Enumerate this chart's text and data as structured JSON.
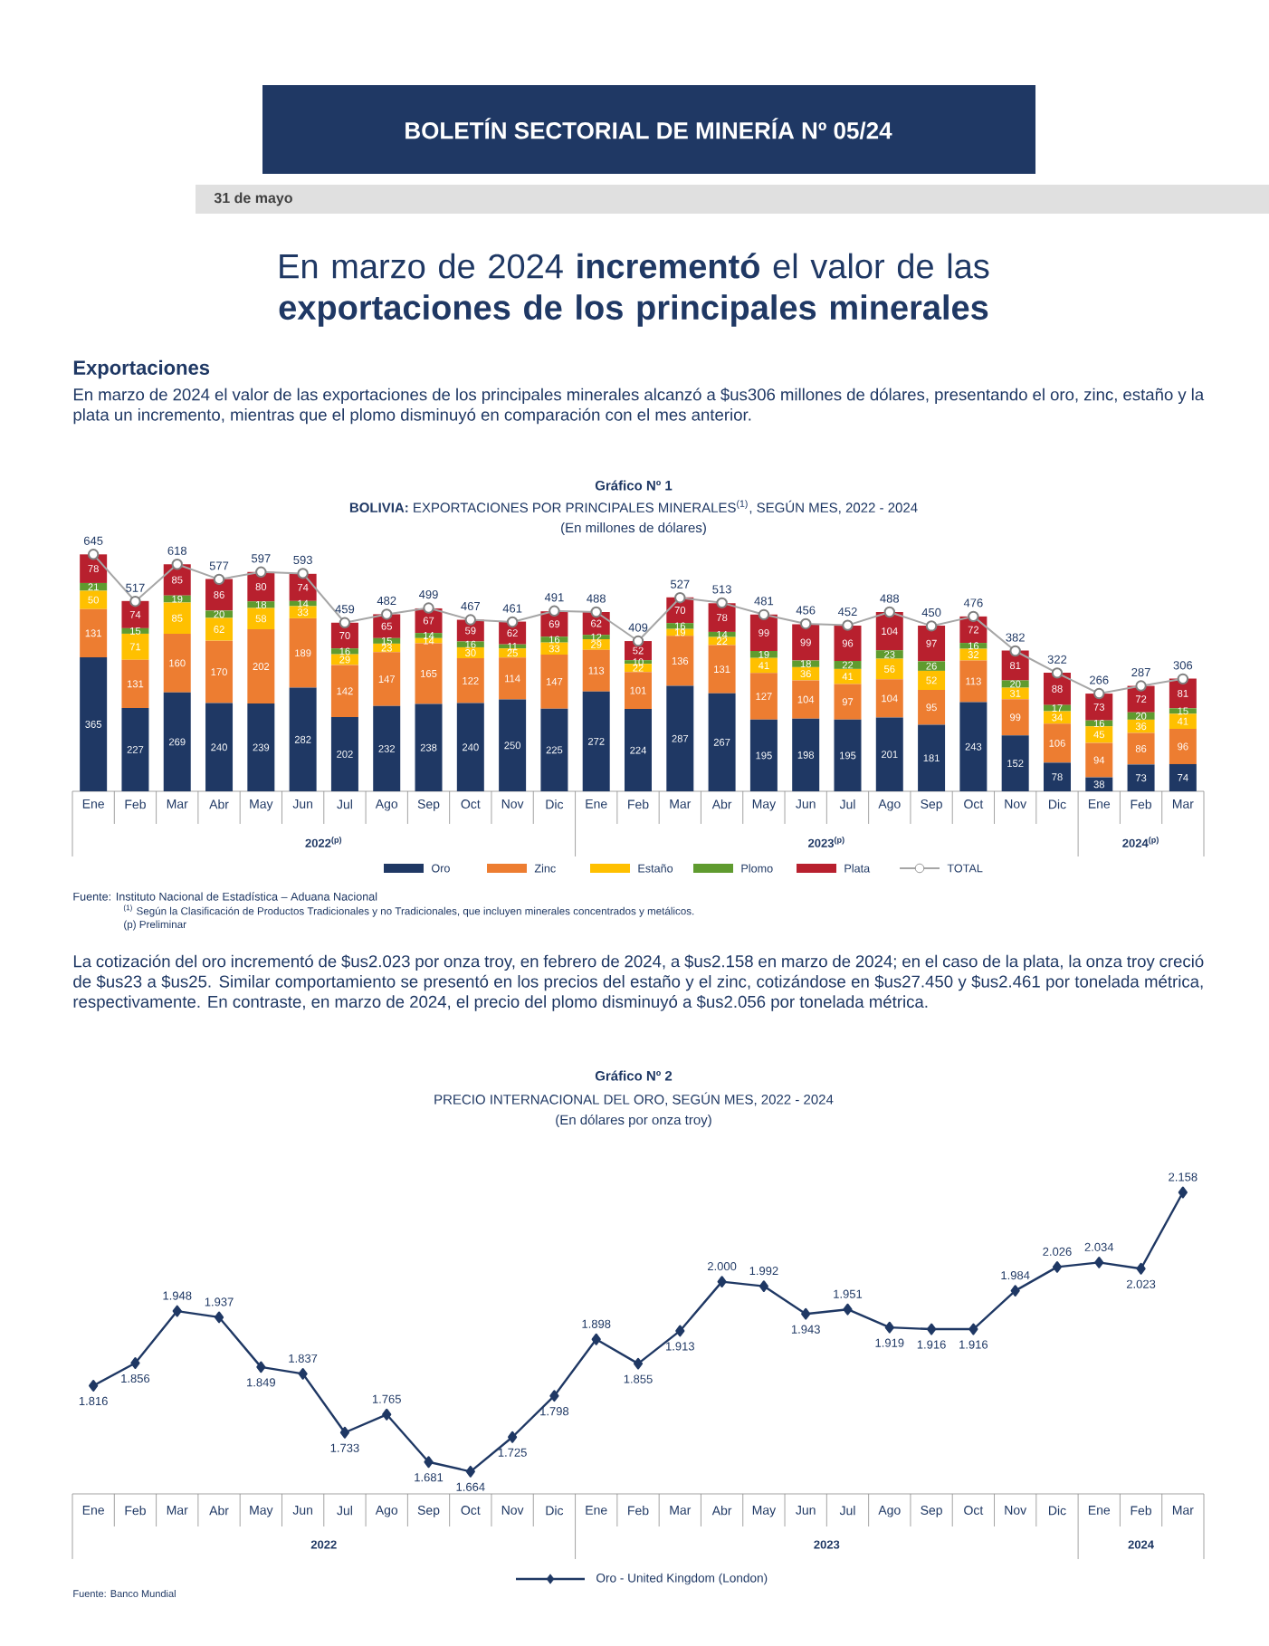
{
  "chart_data": [
    {
      "type": "bar",
      "stacked": true,
      "data_labels": true,
      "legend": "bottom",
      "title": "Gráfico Nº 1",
      "subtitle": "**BOLIVIA:** EXPORTACIONES POR PRINCIPALES MINERALES$^{(1)}$, SEGÚN MES, 2022 - 2024",
      "categories": [
        "Ene",
        "Feb",
        "Mar",
        "Abr",
        "May",
        "Jun",
        "Jul",
        "Ago",
        "Sep",
        "Oct",
        "Nov",
        "Dic",
        "Ene",
        "Feb",
        "Mar",
        "Abr",
        "May",
        "Jun",
        "Jul",
        "Ago",
        "Sep",
        "Oct",
        "Nov",
        "Dic",
        "Ene",
        "Feb",
        "Mar"
      ],
      "series": [
        {
          "name": "Oro",
          "color": "#1f3864",
          "values": [
            365,
            227,
            269,
            240,
            239,
            282,
            202,
            232,
            238,
            240,
            250,
            225,
            272,
            224,
            287,
            267,
            195,
            198,
            195,
            201,
            181,
            243,
            152,
            78,
            38,
            73,
            74
          ]
        },
        {
          "name": "Zinc",
          "color": "#ed7d31",
          "values": [
            131,
            131,
            160,
            170,
            202,
            189,
            142,
            147,
            165,
            122,
            114,
            147,
            113,
            101,
            136,
            131,
            127,
            104,
            97,
            104,
            95,
            113,
            99,
            106,
            94,
            86,
            96
          ]
        },
        {
          "name": "Estaño",
          "color": "#ffc000",
          "values": [
            50,
            71,
            85,
            62,
            58,
            33,
            29,
            23,
            14,
            30,
            25,
            33,
            29,
            22,
            19,
            22,
            41,
            36,
            41,
            56,
            52,
            32,
            31,
            34,
            45,
            36,
            41
          ]
        },
        {
          "name": "Plomo",
          "color": "#5f9b2f",
          "values": [
            21,
            15,
            19,
            20,
            18,
            14,
            16,
            15,
            14,
            16,
            11,
            16,
            12,
            10,
            16,
            14,
            19,
            18,
            22,
            23,
            26,
            16,
            20,
            17,
            16,
            20,
            15
          ]
        },
        {
          "name": "Plata",
          "color": "#b8202e",
          "values": [
            78,
            74,
            85,
            86,
            80,
            74,
            70,
            65,
            67,
            59,
            62,
            69,
            62,
            52,
            70,
            78,
            99,
            99,
            96,
            104,
            97,
            72,
            81,
            88,
            73,
            72,
            81
          ]
        },
        {
          "name": "TOTAL",
          "type": "line",
          "marker": "circle",
          "color": "#a6a6a6",
          "values": [
            645,
            517,
            618,
            577,
            597,
            593,
            459,
            482,
            499,
            467,
            461,
            491,
            488,
            409,
            527,
            513,
            481,
            456,
            452,
            488,
            450,
            476,
            382,
            322,
            266,
            287,
            306
          ]
        }
      ],
      "annotations": [
        "BOLETÍN SECTORIAL DE MINERÍA Nº 05/24",
        "31 de mayo",
        "En marzo de 2024 **incrementó** el valor de las **exportaciones de los principales minerales**",
        "Exportaciones",
        "En marzo de 2024 el valor de las exportaciones de los principales minerales alcanzó a $us306 millones de dólares, presentando el oro, zinc, estaño y la plata un incremento, mientras que el plomo disminuyó en comparación con el mes anterior.",
        "(En millones de dólares)",
        "Fuente: Instituto Nacional de Estadística – Aduana Nacional",
        "$^{(1)}$ Según la Clasificación de Productos Tradicionales y no Tradicionales, que incluyen minerales concentrados y metálicos.",
        "(p) Preliminar",
        "La cotización del oro incrementó de $us2.023 por onza troy, en febrero de 2024, a $us2.158 en marzo de 2024; en el caso de la plata, la onza troy creció de $us23 a $us25. Similar comportamiento se presentó en los precios del estaño y el zinc, cotizándose en $us27.450 y $us2.461 por tonelada métrica, respectivamente. En contraste, en marzo de 2024, el precio del plomo disminuyó a $us2.056 por tonelada métrica.",
        "2022$^{(p)}$",
        "2023$^{(p)}$",
        "2024$^{(p)}$"
      ]
    },
    {
      "type": "line",
      "legend": "bottom",
      "marker": "diamond",
      "line_style": "solid",
      "title": "Gráfico Nº 2",
      "subtitle": "PRECIO INTERNACIONAL DEL ORO, SEGÚN MES, 2022 - 2024",
      "categories": [
        "Ene",
        "Feb",
        "Mar",
        "Abr",
        "May",
        "Jun",
        "Jul",
        "Ago",
        "Sep",
        "Oct",
        "Nov",
        "Dic",
        "Ene",
        "Feb",
        "Mar",
        "Abr",
        "May",
        "Jun",
        "Jul",
        "Ago",
        "Sep",
        "Oct",
        "Nov",
        "Dic",
        "Ene",
        "Feb",
        "Mar"
      ],
      "series": [
        {
          "name": "Oro - United Kingdom (London)",
          "color": "#1f3864",
          "values": [
            1816,
            1856,
            1948,
            1937,
            1849,
            1837,
            1733,
            1765,
            1681,
            1664,
            1725,
            1798,
            1898,
            1855,
            1913,
            2000,
            1992,
            1943,
            1951,
            1919,
            1916,
            1916,
            1984,
            2026,
            2034,
            2023,
            2158
          ],
          "value_labels": [
            "1.816",
            "1.856",
            "1.948",
            "1.937",
            "1.849",
            "1.837",
            "1.733",
            "1.765",
            "1.681",
            "1.664",
            "1.725",
            "1.798",
            "1.898",
            "1.855",
            "1.913",
            "2.000",
            "1.992",
            "1.943",
            "1.951",
            "1.919",
            "1.916",
            "1.916",
            "1.984",
            "2.026",
            "2.034",
            "2.023",
            "2.158"
          ]
        }
      ],
      "annotations": [
        "(En dólares por onza troy)",
        "Fuente: Banco Mundial",
        "2022",
        "2023",
        "2024"
      ]
    }
  ]
}
